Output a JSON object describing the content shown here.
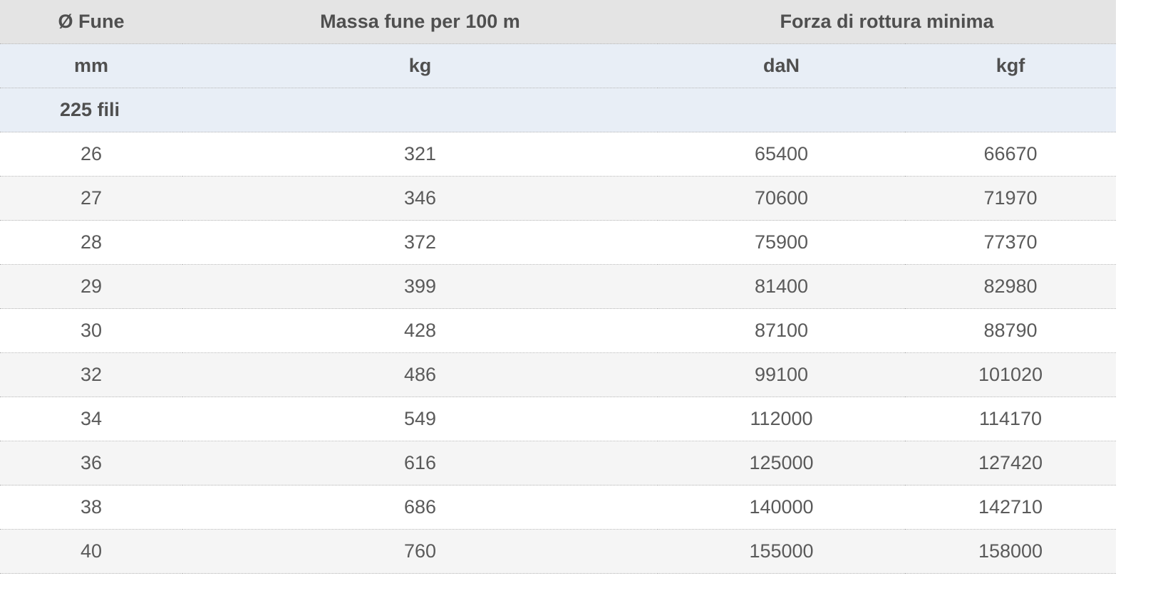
{
  "table": {
    "header": {
      "diameter": "Ø Fune",
      "mass": "Massa fune per 100 m",
      "force": "Forza di rottura minima"
    },
    "units": {
      "diameter": "mm",
      "mass": "kg",
      "force_dan": "daN",
      "force_kgf": "kgf"
    },
    "group_label": "225 fili",
    "rows": [
      {
        "d": "26",
        "mass": "321",
        "dan": "65400",
        "kgf": "66670"
      },
      {
        "d": "27",
        "mass": "346",
        "dan": "70600",
        "kgf": "71970"
      },
      {
        "d": "28",
        "mass": "372",
        "dan": "75900",
        "kgf": "77370"
      },
      {
        "d": "29",
        "mass": "399",
        "dan": "81400",
        "kgf": "82980"
      },
      {
        "d": "30",
        "mass": "428",
        "dan": "87100",
        "kgf": "88790"
      },
      {
        "d": "32",
        "mass": "486",
        "dan": "99100",
        "kgf": "101020"
      },
      {
        "d": "34",
        "mass": "549",
        "dan": "112000",
        "kgf": "114170"
      },
      {
        "d": "36",
        "mass": "616",
        "dan": "125000",
        "kgf": "127420"
      },
      {
        "d": "38",
        "mass": "686",
        "dan": "140000",
        "kgf": "142710"
      },
      {
        "d": "40",
        "mass": "760",
        "dan": "155000",
        "kgf": "158000"
      }
    ]
  }
}
